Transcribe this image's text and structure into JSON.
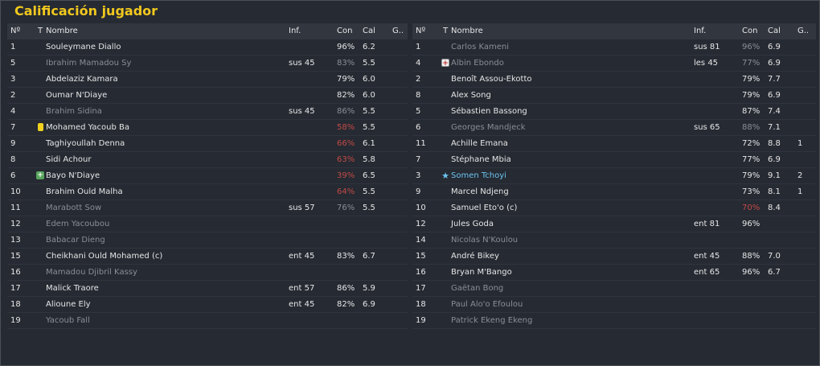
{
  "title": "Calificación jugador",
  "headers": {
    "num": "Nº",
    "t": "T",
    "name": "Nombre",
    "inf": "Inf.",
    "con": "Con",
    "cal": "Cal",
    "g": "G.."
  },
  "left_rows": [
    {
      "num": "1",
      "icon": "",
      "name": "Souleymane Diallo",
      "inf": "",
      "con": "96%",
      "cal": "6.2",
      "g": "",
      "dim": false,
      "con_red": false
    },
    {
      "num": "5",
      "icon": "",
      "name": "Ibrahim Mamadou Sy",
      "inf": "sus 45",
      "con": "83%",
      "cal": "5.5",
      "g": "",
      "dim": true,
      "con_red": false
    },
    {
      "num": "3",
      "icon": "",
      "name": "Abdelaziz Kamara",
      "inf": "",
      "con": "79%",
      "cal": "6.0",
      "g": "",
      "dim": false,
      "con_red": false
    },
    {
      "num": "2",
      "icon": "",
      "name": "Oumar N'Diaye",
      "inf": "",
      "con": "82%",
      "cal": "6.0",
      "g": "",
      "dim": false,
      "con_red": false
    },
    {
      "num": "4",
      "icon": "",
      "name": "Brahim Sidina",
      "inf": "sus 45",
      "con": "86%",
      "cal": "5.5",
      "g": "",
      "dim": true,
      "con_red": false
    },
    {
      "num": "7",
      "icon": "yellow-card",
      "name": "Mohamed Yacoub Ba",
      "inf": "",
      "con": "58%",
      "cal": "5.5",
      "g": "",
      "dim": false,
      "con_red": true
    },
    {
      "num": "9",
      "icon": "",
      "name": "Taghiyoullah Denna",
      "inf": "",
      "con": "66%",
      "cal": "6.1",
      "g": "",
      "dim": false,
      "con_red": true
    },
    {
      "num": "8",
      "icon": "",
      "name": "Sidi Achour",
      "inf": "",
      "con": "63%",
      "cal": "5.8",
      "g": "",
      "dim": false,
      "con_red": true
    },
    {
      "num": "6",
      "icon": "injury-green",
      "name": "Bayo N'Diaye",
      "inf": "",
      "con": "39%",
      "cal": "6.5",
      "g": "",
      "dim": false,
      "con_red": true
    },
    {
      "num": "10",
      "icon": "",
      "name": "Brahim Ould Malha",
      "inf": "",
      "con": "64%",
      "cal": "5.5",
      "g": "",
      "dim": false,
      "con_red": true
    },
    {
      "num": "11",
      "icon": "",
      "name": "Marabott Sow",
      "inf": "sus 57",
      "con": "76%",
      "cal": "5.5",
      "g": "",
      "dim": true,
      "con_red": false
    },
    {
      "num": "12",
      "icon": "",
      "name": "Edem Yacoubou",
      "inf": "",
      "con": "",
      "cal": "",
      "g": "",
      "dim": true,
      "con_red": false
    },
    {
      "num": "13",
      "icon": "",
      "name": "Babacar Dieng",
      "inf": "",
      "con": "",
      "cal": "",
      "g": "",
      "dim": true,
      "con_red": false
    },
    {
      "num": "15",
      "icon": "",
      "name": "Cheikhani Ould Mohamed (c)",
      "inf": "ent 45",
      "con": "83%",
      "cal": "6.7",
      "g": "",
      "dim": false,
      "con_red": false
    },
    {
      "num": "16",
      "icon": "",
      "name": "Mamadou Djibril Kassy",
      "inf": "",
      "con": "",
      "cal": "",
      "g": "",
      "dim": true,
      "con_red": false
    },
    {
      "num": "17",
      "icon": "",
      "name": "Malick Traore",
      "inf": "ent 57",
      "con": "86%",
      "cal": "5.9",
      "g": "",
      "dim": false,
      "con_red": false
    },
    {
      "num": "18",
      "icon": "",
      "name": "Alioune Ely",
      "inf": "ent 45",
      "con": "82%",
      "cal": "6.9",
      "g": "",
      "dim": false,
      "con_red": false
    },
    {
      "num": "19",
      "icon": "",
      "name": "Yacoub Fall",
      "inf": "",
      "con": "",
      "cal": "",
      "g": "",
      "dim": true,
      "con_red": false
    }
  ],
  "right_rows": [
    {
      "num": "1",
      "icon": "",
      "name": "Carlos Kameni",
      "inf": "sus 81",
      "con": "96%",
      "cal": "6.9",
      "g": "",
      "dim": true,
      "con_red": false
    },
    {
      "num": "4",
      "icon": "injury-red",
      "name": "Albin Ebondo",
      "inf": "les 45",
      "con": "77%",
      "cal": "6.9",
      "g": "",
      "dim": true,
      "con_red": false
    },
    {
      "num": "2",
      "icon": "",
      "name": "Benoît Assou-Ekotto",
      "inf": "",
      "con": "79%",
      "cal": "7.7",
      "g": "",
      "dim": false,
      "con_red": false
    },
    {
      "num": "8",
      "icon": "",
      "name": "Alex Song",
      "inf": "",
      "con": "79%",
      "cal": "6.9",
      "g": "",
      "dim": false,
      "con_red": false
    },
    {
      "num": "5",
      "icon": "",
      "name": "Sébastien Bassong",
      "inf": "",
      "con": "87%",
      "cal": "7.4",
      "g": "",
      "dim": false,
      "con_red": false
    },
    {
      "num": "6",
      "icon": "",
      "name": "Georges Mandjeck",
      "inf": "sus 65",
      "con": "88%",
      "cal": "7.1",
      "g": "",
      "dim": true,
      "con_red": false
    },
    {
      "num": "11",
      "icon": "",
      "name": "Achille Emana",
      "inf": "",
      "con": "72%",
      "cal": "8.8",
      "g": "1",
      "dim": false,
      "con_red": false
    },
    {
      "num": "7",
      "icon": "",
      "name": "Stéphane Mbia",
      "inf": "",
      "con": "77%",
      "cal": "6.9",
      "g": "",
      "dim": false,
      "con_red": false
    },
    {
      "num": "3",
      "icon": "star",
      "name": "Somen Tchoyi",
      "inf": "",
      "con": "79%",
      "cal": "9.1",
      "g": "2",
      "dim": false,
      "con_red": false,
      "highlight": true
    },
    {
      "num": "9",
      "icon": "",
      "name": "Marcel Ndjeng",
      "inf": "",
      "con": "73%",
      "cal": "8.1",
      "g": "1",
      "dim": false,
      "con_red": false
    },
    {
      "num": "10",
      "icon": "",
      "name": "Samuel Eto'o (c)",
      "inf": "",
      "con": "70%",
      "cal": "8.4",
      "g": "",
      "dim": false,
      "con_red": true
    },
    {
      "num": "12",
      "icon": "",
      "name": "Jules Goda",
      "inf": "ent 81",
      "con": "96%",
      "cal": "",
      "g": "",
      "dim": false,
      "con_red": false
    },
    {
      "num": "14",
      "icon": "",
      "name": "Nicolas N'Koulou",
      "inf": "",
      "con": "",
      "cal": "",
      "g": "",
      "dim": true,
      "con_red": false
    },
    {
      "num": "15",
      "icon": "",
      "name": "André Bikey",
      "inf": "ent 45",
      "con": "88%",
      "cal": "7.0",
      "g": "",
      "dim": false,
      "con_red": false
    },
    {
      "num": "16",
      "icon": "",
      "name": "Bryan M'Bango",
      "inf": "ent 65",
      "con": "96%",
      "cal": "6.7",
      "g": "",
      "dim": false,
      "con_red": false
    },
    {
      "num": "17",
      "icon": "",
      "name": "Gaëtan Bong",
      "inf": "",
      "con": "",
      "cal": "",
      "g": "",
      "dim": true,
      "con_red": false
    },
    {
      "num": "18",
      "icon": "",
      "name": "Paul Alo'o Efoulou",
      "inf": "",
      "con": "",
      "cal": "",
      "g": "",
      "dim": true,
      "con_red": false
    },
    {
      "num": "19",
      "icon": "",
      "name": "Patrick Ekeng Ekeng",
      "inf": "",
      "con": "",
      "cal": "",
      "g": "",
      "dim": true,
      "con_red": false
    }
  ],
  "colors": {
    "title": "#f0c81e",
    "dim_text": "#8a8e96",
    "low_condition": "#c24a48",
    "highlight": "#6cc4ef"
  }
}
